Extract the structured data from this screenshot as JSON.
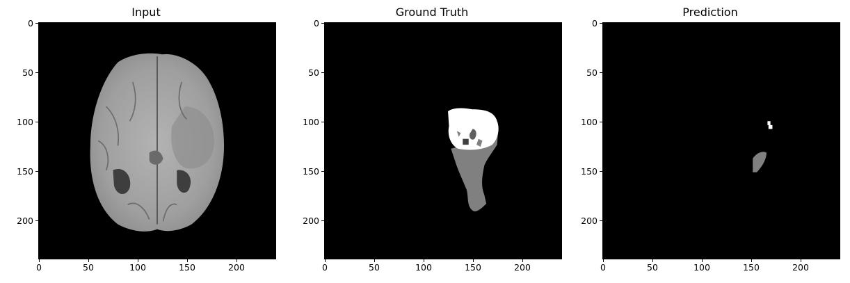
{
  "panels": [
    {
      "title": "Input"
    },
    {
      "title": "Ground Truth"
    },
    {
      "title": "Prediction"
    }
  ],
  "axes": {
    "ticks": [
      "0",
      "50",
      "100",
      "150",
      "200"
    ]
  },
  "colors": {
    "background": "#000000",
    "tumor_core": "#ffffff",
    "edema": "#808080",
    "brain_tissue": "#a7a7a7"
  }
}
